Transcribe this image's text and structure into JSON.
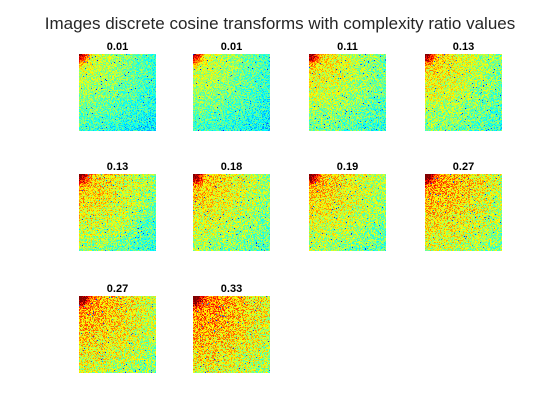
{
  "figure": {
    "title": "Images discrete cosine transforms with complexity ratio values"
  },
  "panels": [
    {
      "label": "0.01"
    },
    {
      "label": "0.01"
    },
    {
      "label": "0.11"
    },
    {
      "label": "0.13"
    },
    {
      "label": "0.13"
    },
    {
      "label": "0.18"
    },
    {
      "label": "0.19"
    },
    {
      "label": "0.27"
    },
    {
      "label": "0.27"
    },
    {
      "label": "0.33"
    }
  ],
  "colormap": "jet"
}
